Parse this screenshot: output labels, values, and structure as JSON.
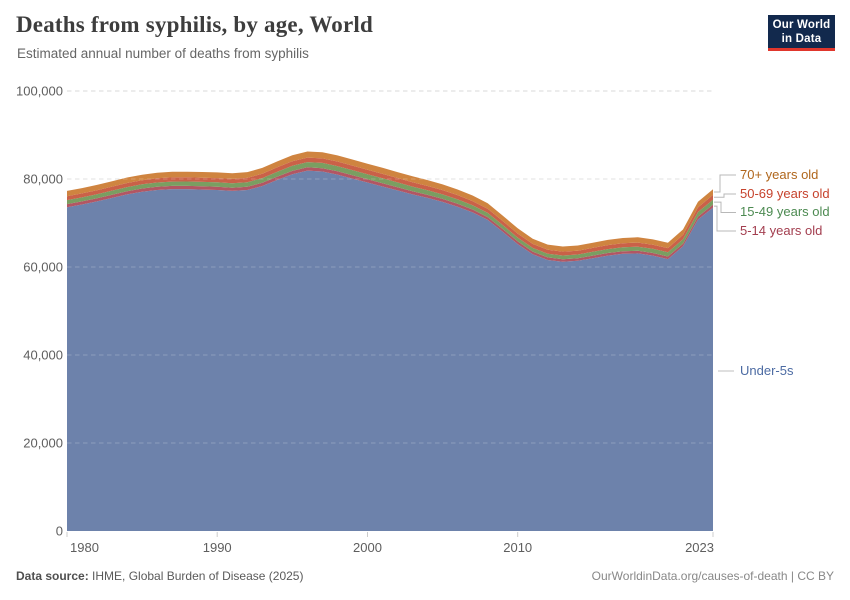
{
  "header": {
    "title": "Deaths from syphilis, by age, World",
    "subtitle": "Estimated annual number of deaths from syphilis",
    "logo": {
      "line1": "Our World",
      "line2": "in Data",
      "bg_color": "#12294d",
      "accent_color": "#e0362c"
    }
  },
  "footer": {
    "source_label": "Data source:",
    "source_text": " IHME, Global Burden of Disease (2025)",
    "credit_link": "OurWorldinData.org/causes-of-death",
    "credit_suffix": " | CC BY"
  },
  "chart_data": {
    "type": "area",
    "stacked": true,
    "title": "Deaths from syphilis, by age, World",
    "subtitle": "Estimated annual number of deaths from syphilis",
    "xlabel": "",
    "ylabel": "",
    "xlim": [
      1980,
      2023
    ],
    "ylim": [
      0,
      100000
    ],
    "grid": "dashed-horizontal",
    "legend_position": "right",
    "x": [
      1980,
      1981,
      1982,
      1983,
      1984,
      1985,
      1986,
      1987,
      1988,
      1989,
      1990,
      1991,
      1992,
      1993,
      1994,
      1995,
      1996,
      1997,
      1998,
      1999,
      2000,
      2001,
      2002,
      2003,
      2004,
      2005,
      2006,
      2007,
      2008,
      2009,
      2010,
      2011,
      2012,
      2013,
      2014,
      2015,
      2016,
      2017,
      2018,
      2019,
      2020,
      2021,
      2022,
      2023
    ],
    "series": [
      {
        "name": "Under-5s",
        "color": "#6d82ab",
        "label_color": "#4c6ba3",
        "values": [
          73600,
          74200,
          74900,
          75700,
          76500,
          77100,
          77500,
          77700,
          77700,
          77600,
          77500,
          77300,
          77500,
          78400,
          79800,
          81100,
          81900,
          81700,
          81000,
          80100,
          79200,
          78300,
          77400,
          76500,
          75700,
          74800,
          73700,
          72400,
          70700,
          68000,
          65200,
          62900,
          61600,
          61200,
          61400,
          62000,
          62600,
          63000,
          63100,
          62600,
          61800,
          64700,
          70800,
          73500
        ]
      },
      {
        "name": "5-14 years old",
        "color": "#b25663",
        "label_color": "#a33e4f",
        "values": [
          700,
          700,
          710,
          720,
          720,
          730,
          730,
          730,
          730,
          730,
          730,
          720,
          720,
          730,
          740,
          750,
          760,
          750,
          750,
          740,
          730,
          720,
          710,
          700,
          690,
          680,
          670,
          660,
          650,
          630,
          610,
          590,
          580,
          570,
          570,
          580,
          580,
          590,
          590,
          590,
          580,
          610,
          650,
          690
        ]
      },
      {
        "name": "15-49 years old",
        "color": "#7a9e61",
        "label_color": "#4c8a51",
        "values": [
          900,
          910,
          920,
          940,
          950,
          970,
          980,
          990,
          1000,
          1010,
          1020,
          1030,
          1050,
          1080,
          1120,
          1160,
          1190,
          1200,
          1190,
          1180,
          1160,
          1140,
          1110,
          1080,
          1050,
          1020,
          1000,
          970,
          940,
          910,
          880,
          860,
          850,
          850,
          860,
          870,
          890,
          910,
          930,
          950,
          970,
          1010,
          1060,
          1100
        ]
      },
      {
        "name": "50-69 years old",
        "color": "#ca6148",
        "label_color": "#c6432d",
        "values": [
          900,
          910,
          915,
          920,
          930,
          935,
          940,
          945,
          950,
          955,
          960,
          965,
          975,
          985,
          1000,
          1015,
          1025,
          1030,
          1030,
          1025,
          1020,
          1010,
          1000,
          990,
          980,
          970,
          960,
          950,
          940,
          925,
          910,
          900,
          890,
          885,
          885,
          890,
          900,
          910,
          920,
          930,
          940,
          975,
          1030,
          1090
        ]
      },
      {
        "name": "70+ years old",
        "color": "#cf8440",
        "label_color": "#b0661c",
        "values": [
          1200,
          1210,
          1220,
          1230,
          1240,
          1250,
          1260,
          1270,
          1280,
          1290,
          1300,
          1305,
          1315,
          1330,
          1350,
          1370,
          1385,
          1390,
          1390,
          1385,
          1375,
          1365,
          1350,
          1335,
          1320,
          1305,
          1290,
          1270,
          1250,
          1225,
          1200,
          1180,
          1165,
          1160,
          1160,
          1170,
          1180,
          1190,
          1200,
          1205,
          1200,
          1230,
          1270,
          1310
        ]
      }
    ],
    "xticks": [
      1980,
      1990,
      2000,
      2010,
      2023
    ],
    "xtick_labels": [
      "1980",
      "1990",
      "2000",
      "2010",
      "2023"
    ],
    "yticks": [
      0,
      20000,
      40000,
      60000,
      80000,
      100000
    ],
    "ytick_labels": [
      "0",
      "20,000",
      "40,000",
      "60,000",
      "80,000",
      "100,000"
    ],
    "gridline_color": "#d9d9d9"
  }
}
